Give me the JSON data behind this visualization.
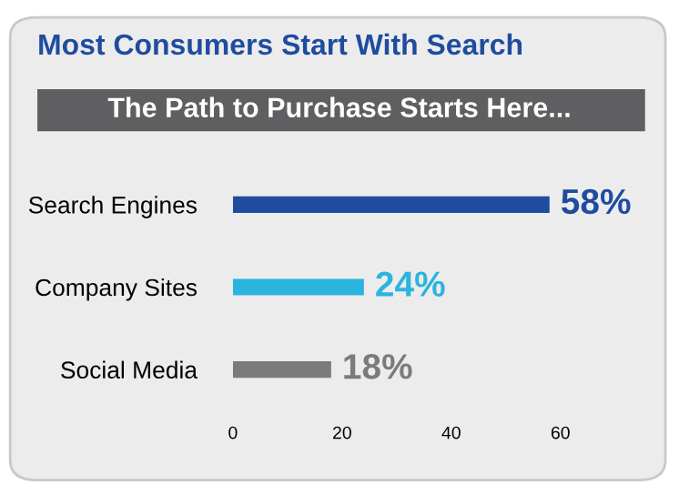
{
  "chart_data": {
    "type": "bar",
    "orientation": "horizontal",
    "title": "Most Consumers Start With Search",
    "subtitle": "The Path to Purchase Starts Here...",
    "categories": [
      "Search Engines",
      "Company Sites",
      "Social Media"
    ],
    "values": [
      58,
      24,
      18
    ],
    "colors": [
      "#1f4c9f",
      "#2ab4de",
      "#7b7b7b"
    ],
    "value_labels": [
      "58%",
      "24%",
      "18%"
    ],
    "xlim": [
      0,
      60
    ],
    "xticks": [
      0,
      20,
      40,
      60
    ],
    "grid": false,
    "legend": false
  }
}
